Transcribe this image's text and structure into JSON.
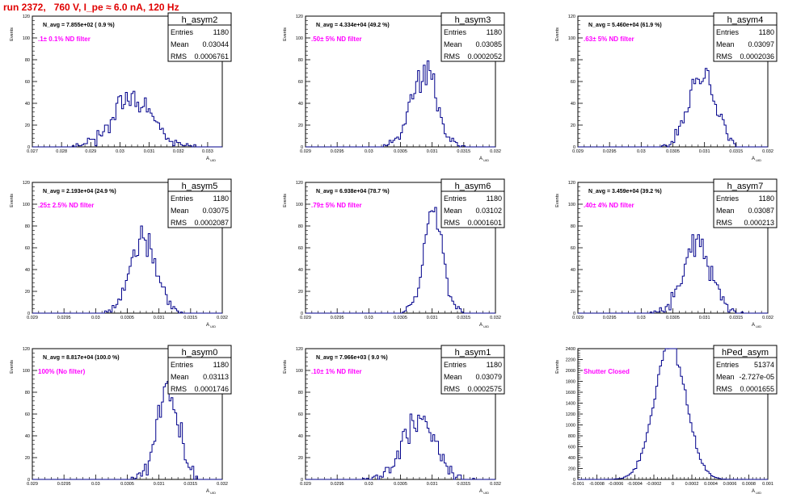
{
  "run_title": "run 2372,   760 V, I_pe ≈ 6.0 nA, 120 Hz",
  "colors": {
    "histogram": "#00008b",
    "annotation": "#ff00ff",
    "title": "#e00000",
    "axis": "#000000"
  },
  "chart_data": [
    {
      "type": "histogram",
      "name": "h_asym2",
      "stats": {
        "entries": "1180",
        "mean": "0.03044",
        "rms": "0.0006761"
      },
      "n_avg": "N_avg = 7.855e+02 ( 0.9 %)",
      "filter": ".1± 0.1% ND filter",
      "ylabel": "Events",
      "xlabel": "A_UID",
      "xlim": [
        0.027,
        0.0335
      ],
      "ylim": [
        0,
        120
      ],
      "xticks": [
        "0.027",
        "0.028",
        "0.029",
        "0.03",
        "0.031",
        "0.032",
        "0.033"
      ],
      "yticks": [
        "0",
        "20",
        "40",
        "60",
        "80",
        "100",
        "120"
      ],
      "dist": {
        "mean": 0.03044,
        "rms": 0.0006761,
        "entries": 1180,
        "bins": 100,
        "seed": 11
      }
    },
    {
      "type": "histogram",
      "name": "h_asym3",
      "stats": {
        "entries": "1180",
        "mean": "0.03085",
        "rms": "0.0002052"
      },
      "n_avg": "N_avg = 4.334e+04 (49.2 %)",
      "filter": ".50± 5% ND filter",
      "ylabel": "Events",
      "xlabel": "A_UID",
      "xlim": [
        0.029,
        0.032
      ],
      "ylim": [
        0,
        120
      ],
      "xticks": [
        "0.029",
        "0.0295",
        "0.03",
        "0.0305",
        "0.031",
        "0.0315",
        "0.032"
      ],
      "yticks": [
        "0",
        "20",
        "40",
        "60",
        "80",
        "100",
        "120"
      ],
      "dist": {
        "mean": 0.03085,
        "rms": 0.0002052,
        "entries": 1180,
        "bins": 100,
        "seed": 23
      }
    },
    {
      "type": "histogram",
      "name": "h_asym4",
      "stats": {
        "entries": "1180",
        "mean": "0.03097",
        "rms": "0.0002036"
      },
      "n_avg": "N_avg = 5.460e+04 (61.9 %)",
      "filter": ".63± 5% ND filter",
      "ylabel": "Events",
      "xlabel": "A_UID",
      "xlim": [
        0.029,
        0.032
      ],
      "ylim": [
        0,
        120
      ],
      "xticks": [
        "0.029",
        "0.0295",
        "0.03",
        "0.0305",
        "0.031",
        "0.0315",
        "0.032"
      ],
      "yticks": [
        "0",
        "20",
        "40",
        "60",
        "80",
        "100",
        "120"
      ],
      "dist": {
        "mean": 0.03097,
        "rms": 0.0002036,
        "entries": 1180,
        "bins": 100,
        "seed": 37
      }
    },
    {
      "type": "histogram",
      "name": "h_asym5",
      "stats": {
        "entries": "1180",
        "mean": "0.03075",
        "rms": "0.0002087"
      },
      "n_avg": "N_avg = 2.193e+04 (24.9 %)",
      "filter": ".25± 2.5% ND filter",
      "ylabel": "Events",
      "xlabel": "A_UID",
      "xlim": [
        0.029,
        0.032
      ],
      "ylim": [
        0,
        120
      ],
      "xticks": [
        "0.029",
        "0.0295",
        "0.03",
        "0.0305",
        "0.031",
        "0.0315",
        "0.032"
      ],
      "yticks": [
        "0",
        "20",
        "40",
        "60",
        "80",
        "100",
        "120"
      ],
      "dist": {
        "mean": 0.03075,
        "rms": 0.0002087,
        "entries": 1180,
        "bins": 100,
        "seed": 41
      }
    },
    {
      "type": "histogram",
      "name": "h_asym6",
      "stats": {
        "entries": "1180",
        "mean": "0.03102",
        "rms": "0.0001601"
      },
      "n_avg": "N_avg = 6.938e+04 (78.7 %)",
      "filter": ".79± 5% ND filter",
      "ylabel": "Events",
      "xlabel": "A_UID",
      "xlim": [
        0.029,
        0.032
      ],
      "ylim": [
        0,
        120
      ],
      "xticks": [
        "0.029",
        "0.0295",
        "0.03",
        "0.0305",
        "0.031",
        "0.0315",
        "0.032"
      ],
      "yticks": [
        "0",
        "20",
        "40",
        "60",
        "80",
        "100",
        "120"
      ],
      "dist": {
        "mean": 0.03102,
        "rms": 0.0001601,
        "entries": 1180,
        "bins": 100,
        "seed": 53
      }
    },
    {
      "type": "histogram",
      "name": "h_asym7",
      "stats": {
        "entries": "1180",
        "mean": "0.03087",
        "rms": "0.000213"
      },
      "n_avg": "N_avg = 3.459e+04 (39.2 %)",
      "filter": ".40± 4% ND filter",
      "ylabel": "Events",
      "xlabel": "A_UID",
      "xlim": [
        0.029,
        0.032
      ],
      "ylim": [
        0,
        120
      ],
      "xticks": [
        "0.029",
        "0.0295",
        "0.03",
        "0.0305",
        "0.031",
        "0.0315",
        "0.032"
      ],
      "yticks": [
        "0",
        "20",
        "40",
        "60",
        "80",
        "100",
        "120"
      ],
      "dist": {
        "mean": 0.03087,
        "rms": 0.000213,
        "entries": 1180,
        "bins": 100,
        "seed": 67
      }
    },
    {
      "type": "histogram",
      "name": "h_asym0",
      "stats": {
        "entries": "1180",
        "mean": "0.03113",
        "rms": "0.0001746"
      },
      "n_avg": "N_avg = 8.817e+04 (100.0 %)",
      "filter": "100% (No filter)",
      "ylabel": "Events",
      "xlabel": "A_UID",
      "xlim": [
        0.029,
        0.032
      ],
      "ylim": [
        0,
        120
      ],
      "xticks": [
        "0.029",
        "0.0295",
        "0.03",
        "0.0305",
        "0.031",
        "0.0315",
        "0.032"
      ],
      "yticks": [
        "0",
        "20",
        "40",
        "60",
        "80",
        "100",
        "120"
      ],
      "dist": {
        "mean": 0.03113,
        "rms": 0.0001746,
        "entries": 1180,
        "bins": 100,
        "seed": 71
      }
    },
    {
      "type": "histogram",
      "name": "h_asym1",
      "stats": {
        "entries": "1180",
        "mean": "0.03079",
        "rms": "0.0002575"
      },
      "n_avg": "N_avg = 7.966e+03 ( 9.0 %)",
      "filter": ".10± 1% ND filter",
      "ylabel": "Events",
      "xlabel": "A_UID",
      "xlim": [
        0.029,
        0.032
      ],
      "ylim": [
        0,
        120
      ],
      "xticks": [
        "0.029",
        "0.0295",
        "0.03",
        "0.0305",
        "0.031",
        "0.0315",
        "0.032"
      ],
      "yticks": [
        "0",
        "20",
        "40",
        "60",
        "80",
        "100",
        "120"
      ],
      "dist": {
        "mean": 0.03079,
        "rms": 0.0002575,
        "entries": 1180,
        "bins": 100,
        "seed": 83
      }
    },
    {
      "type": "histogram",
      "name": "hPed_asym",
      "stats": {
        "entries": "51374",
        "mean": "-2.727e-05",
        "rms": "0.0001655"
      },
      "n_avg": "",
      "filter": "Shutter Closed",
      "ylabel": "Events",
      "xlabel": "A_UID",
      "xlim": [
        -0.001,
        0.001
      ],
      "ylim": [
        0,
        2400
      ],
      "xticks": [
        "-0.001",
        "-0.0008",
        "-0.0006",
        "-0.0004",
        "-0.0002",
        "0",
        "0.0002",
        "0.0004",
        "0.0006",
        "0.0008",
        "0.001"
      ],
      "yticks": [
        "0",
        "200",
        "400",
        "600",
        "800",
        "1000",
        "1200",
        "1400",
        "1600",
        "1800",
        "2000",
        "2200",
        "2400"
      ],
      "dist": {
        "mean": -2.727e-05,
        "rms": 0.0001655,
        "entries": 51374,
        "bins": 100,
        "seed": 97
      }
    }
  ]
}
